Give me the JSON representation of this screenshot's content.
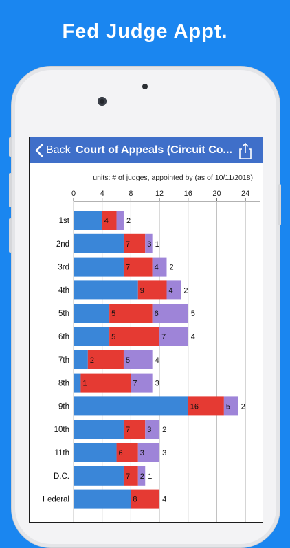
{
  "promo": {
    "title": "Fed Judge Appt."
  },
  "navbar": {
    "back_label": "Back",
    "title": "Court of Appeals (Circuit Co..."
  },
  "icons": {
    "back": "chevron-left-icon",
    "share": "share-icon"
  },
  "colors": {
    "background": "#1a86f0",
    "navbar": "#3f6fc9",
    "series_blue": "#3a86d8",
    "series_red": "#e53a33",
    "series_purple": "#9e84d8"
  },
  "chart_data": {
    "type": "bar",
    "orientation": "horizontal",
    "stacked": true,
    "subtitle": "units: # of judges, appointed by (as of 10/11/2018)",
    "xlim": [
      0,
      26
    ],
    "xticks": [
      0,
      4,
      8,
      12,
      16,
      20,
      24
    ],
    "grid": true,
    "categories": [
      "1st",
      "2nd",
      "3rd",
      "4th",
      "5th",
      "6th",
      "7th",
      "8th",
      "9th",
      "10th",
      "11th",
      "D.C.",
      "Federal"
    ],
    "series": [
      {
        "color": "#3a86d8",
        "values": [
          4,
          7,
          7,
          9,
          5,
          5,
          2,
          1,
          16,
          7,
          6,
          7,
          8
        ],
        "labels": [
          "",
          "",
          "",
          "",
          "",
          "",
          "",
          "",
          "",
          "",
          "",
          "",
          ""
        ]
      },
      {
        "color": "#e53a33",
        "values": [
          2,
          3,
          4,
          4,
          6,
          7,
          5,
          7,
          5,
          3,
          3,
          2,
          4
        ],
        "labels": [
          "4",
          "7",
          "7",
          "9",
          "5",
          "5",
          "2",
          "1",
          "16",
          "7",
          "6",
          "7",
          "8"
        ]
      },
      {
        "color": "#9e84d8",
        "values": [
          1,
          1,
          2,
          2,
          5,
          4,
          4,
          3,
          2,
          2,
          3,
          1,
          0
        ],
        "labels": [
          "",
          "3",
          "4",
          "4",
          "6",
          "7",
          "5",
          "7",
          "5",
          "3",
          "3",
          "2",
          ""
        ]
      }
    ],
    "end_labels": [
      "2",
      "1",
      "2",
      "2",
      "5",
      "4",
      "4",
      "3",
      "2",
      "2",
      "3",
      "1",
      "4"
    ]
  }
}
